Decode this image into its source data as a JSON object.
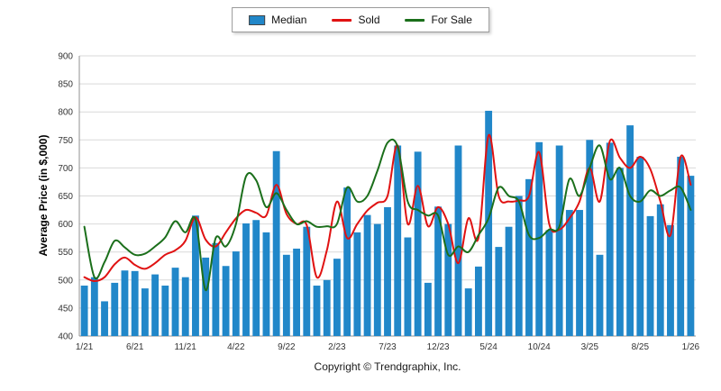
{
  "footer": {
    "copyright": "Copyright © Trendgraphix, Inc."
  },
  "chart_data": {
    "type": "combo",
    "title": "",
    "xlabel": "",
    "ylabel": "Average Price (in $,000)",
    "ylim": [
      400,
      900
    ],
    "y_ticks": [
      400,
      450,
      500,
      550,
      600,
      650,
      700,
      750,
      800,
      850,
      900
    ],
    "x_tick_every": 5,
    "x_ticks_shown": [
      "1/21",
      "6/21",
      "11/21",
      "4/22",
      "9/22",
      "2/23",
      "7/23",
      "12/23",
      "5/24",
      "10/24",
      "3/25",
      "8/25",
      "1/26"
    ],
    "grid": true,
    "legend_position": "top-center",
    "categories": [
      "1/21",
      "2/21",
      "3/21",
      "4/21",
      "5/21",
      "6/21",
      "7/21",
      "8/21",
      "9/21",
      "10/21",
      "11/21",
      "12/21",
      "1/22",
      "2/22",
      "3/22",
      "4/22",
      "5/22",
      "6/22",
      "7/22",
      "8/22",
      "9/22",
      "10/22",
      "11/22",
      "12/22",
      "1/23",
      "2/23",
      "3/23",
      "4/23",
      "5/23",
      "6/23",
      "7/23",
      "8/23",
      "9/23",
      "10/23",
      "11/23",
      "12/23",
      "1/24",
      "2/24",
      "3/24",
      "4/24",
      "5/24",
      "6/24",
      "7/24",
      "8/24",
      "9/24",
      "10/24",
      "11/24",
      "12/24",
      "1/25",
      "2/25",
      "3/25",
      "4/25",
      "5/25",
      "6/25",
      "7/25",
      "8/25",
      "9/25",
      "10/25",
      "11/25",
      "12/25",
      "1/26"
    ],
    "series": [
      {
        "name": "Median",
        "type": "bar",
        "color": "#2187c9",
        "values": [
          490,
          505,
          462,
          495,
          517,
          516,
          485,
          510,
          490,
          522,
          505,
          615,
          540,
          566,
          525,
          551,
          601,
          607,
          585,
          730,
          545,
          556,
          595,
          490,
          500,
          538,
          665,
          585,
          616,
          600,
          630,
          740,
          576,
          729,
          495,
          631,
          600,
          740,
          485,
          524,
          802,
          559,
          595,
          650,
          680,
          746,
          589,
          740,
          625,
          625,
          750,
          545,
          745,
          700,
          776,
          720,
          614,
          635,
          598,
          720,
          686
        ]
      },
      {
        "name": "Sold",
        "type": "line",
        "color": "#e01212",
        "values": [
          505,
          498,
          505,
          528,
          540,
          527,
          520,
          530,
          545,
          553,
          570,
          612,
          572,
          560,
          585,
          610,
          625,
          620,
          615,
          670,
          618,
          600,
          598,
          505,
          553,
          640,
          575,
          600,
          624,
          638,
          650,
          740,
          600,
          668,
          596,
          630,
          600,
          530,
          610,
          575,
          758,
          650,
          640,
          642,
          650,
          728,
          600,
          590,
          610,
          640,
          700,
          640,
          748,
          718,
          700,
          720,
          698,
          640,
          580,
          720,
          670
        ]
      },
      {
        "name": "For Sale",
        "type": "line",
        "color": "#1b6f1b",
        "values": [
          595,
          505,
          532,
          570,
          558,
          545,
          547,
          560,
          576,
          605,
          585,
          608,
          482,
          575,
          560,
          600,
          685,
          678,
          630,
          655,
          625,
          600,
          605,
          595,
          596,
          600,
          665,
          640,
          650,
          695,
          745,
          738,
          640,
          625,
          615,
          615,
          545,
          560,
          550,
          580,
          610,
          665,
          650,
          640,
          580,
          575,
          590,
          595,
          680,
          650,
          700,
          740,
          680,
          700,
          650,
          640,
          660,
          650,
          660,
          665,
          625
        ]
      }
    ]
  }
}
